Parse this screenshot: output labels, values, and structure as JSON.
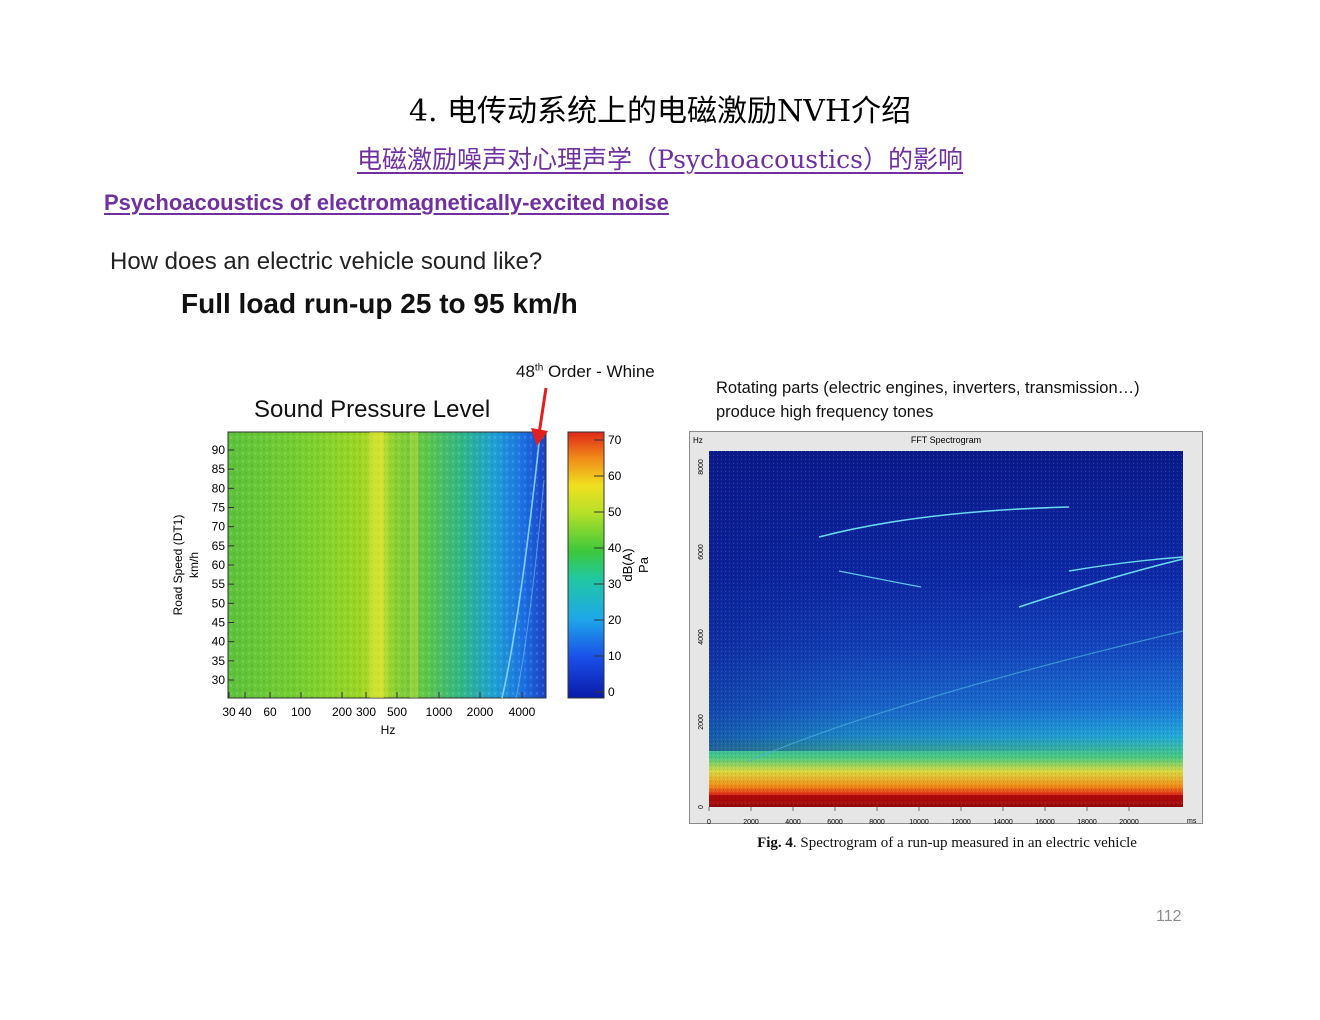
{
  "slide": {
    "title": "4.  电传动系统上的电磁激励NVH介绍",
    "subtitle_cn": "电磁激励噪声对心理声学（Psychoacoustics）的影响",
    "subtitle_en": "Psychoacoustics of electromagnetically-excited noise",
    "page_number": "112"
  },
  "left_figure": {
    "question": "How does an electric vehicle sound like?",
    "heading": "Full load run-up 25 to 95 km/h",
    "annotation_prefix": "48",
    "annotation_sup": "th",
    "annotation_suffix": " Order - Whine",
    "plot_title": "Sound Pressure Level",
    "y_label_1": "Road Speed (DT1)",
    "y_label_2": "km/h",
    "x_label": "Hz",
    "y_ticks": [
      "90",
      "85",
      "80",
      "75",
      "70",
      "65",
      "60",
      "55",
      "50",
      "45",
      "40",
      "35",
      "30"
    ],
    "x_ticks": [
      "30",
      "40",
      "60",
      "100",
      "200",
      "300",
      "500",
      "1000",
      "2000",
      "4000"
    ],
    "colorbar_ticks": [
      "70",
      "60",
      "50",
      "40",
      "30",
      "20",
      "10",
      "0"
    ],
    "colorbar_label_1": "dB(A)",
    "colorbar_label_2": "Pa",
    "arrow_color": "#e02020"
  },
  "right_figure": {
    "description_line1": "Rotating parts (electric engines, inverters, transmission…)",
    "description_line2": "produce high frequency  tones",
    "plot_title": "FFT Spectrogram",
    "y_unit": "Hz",
    "x_unit": "ms",
    "y_ticks": [
      "0",
      "2000",
      "4000",
      "6000",
      "8000"
    ],
    "x_ticks": [
      "0",
      "2000",
      "4000",
      "6000",
      "8000",
      "10000",
      "12000",
      "14000",
      "16000",
      "18000",
      "20000"
    ],
    "caption_bold": "Fig. 4",
    "caption_rest": ". Spectrogram of a run-up measured in an electric vehicle"
  },
  "colors": {
    "accent_purple": "#7030a0",
    "page_number_gray": "#8c8c8c"
  }
}
